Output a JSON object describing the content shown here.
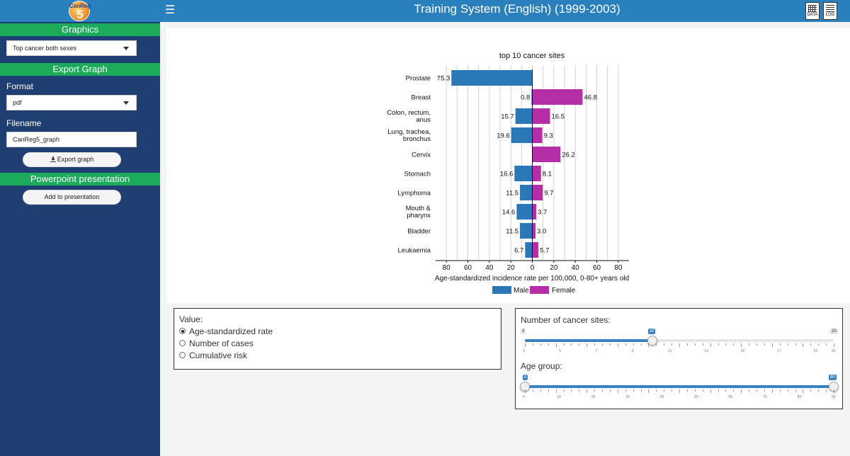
{
  "header": {
    "logo_top": "CanReg",
    "logo_num": "5",
    "title": "Training System (English) (1999-2003)",
    "data_icon_label": "DATA",
    "log_icon_label": "LOG"
  },
  "sidebar": {
    "graphics_title": "Graphics",
    "graphics_select": "Top cancer both sexes",
    "export_title": "Export Graph",
    "format_label": "Format",
    "format_value": "pdf",
    "filename_label": "Filename",
    "filename_value": "CanReg5_graph",
    "export_button": "Export graph",
    "ppt_title": "Powerpoint presentation",
    "add_button": "Add to presentation"
  },
  "value_panel": {
    "title": "Value:",
    "options": [
      "Age-standardized rate",
      "Number of cases",
      "Cumulative risk"
    ],
    "selected": 0
  },
  "sites_slider": {
    "title": "Number of cancer sites:",
    "min": 3,
    "max": 20,
    "value": 10,
    "min_label": "3",
    "max_label": "20",
    "value_label": "10",
    "ticks": [
      "3",
      "5",
      "7",
      "9",
      "11",
      "13",
      "15",
      "17",
      "19",
      "20"
    ],
    "tick_values": [
      3,
      5,
      7,
      9,
      11,
      13,
      15,
      17,
      19,
      20
    ]
  },
  "age_slider": {
    "title": "Age group:",
    "min": 0,
    "max": 90,
    "low": 0,
    "high": 90,
    "low_label": "0",
    "high_label": "90",
    "ticks": [
      "0",
      "10",
      "20",
      "30",
      "40",
      "50",
      "60",
      "70",
      "80",
      "90"
    ],
    "tick_values": [
      0,
      10,
      20,
      30,
      40,
      50,
      60,
      70,
      80,
      90
    ]
  },
  "colors": {
    "male": "#2b78b8",
    "female": "#b52ea6",
    "header": "#2a7fbd",
    "sidebar": "#1f3f72",
    "section": "#1bab5b"
  },
  "chart_data": {
    "type": "bar",
    "title": "top 10 cancer sites",
    "xlabel": "Age-standardized incidence rate per 100,000, 0-80+ years old",
    "xlim": [
      -90,
      90
    ],
    "x_ticks": [
      -80,
      -60,
      -40,
      -20,
      0,
      20,
      40,
      60,
      80
    ],
    "x_tick_labels": [
      "80",
      "60",
      "40",
      "20",
      "0",
      "20",
      "40",
      "60",
      "80"
    ],
    "categories": [
      [
        "Prostate"
      ],
      [
        "Breast"
      ],
      [
        "Colon, rectum,",
        "anus"
      ],
      [
        "Lung, trachea,",
        "bronchus"
      ],
      [
        "Cervix"
      ],
      [
        "Stomach"
      ],
      [
        "Lymphoma"
      ],
      [
        "Mouth &",
        "pharynx"
      ],
      [
        "Bladder"
      ],
      [
        "Leukaemia"
      ]
    ],
    "series": [
      {
        "name": "Male",
        "values": [
          75.3,
          0.8,
          15.7,
          19.6,
          null,
          16.6,
          11.5,
          14.6,
          11.5,
          6.7
        ],
        "labels": [
          "75.3",
          "0.8",
          "15.7",
          "19.6",
          "",
          "16.6",
          "11.5",
          "14.6",
          "11.5",
          "6.7"
        ]
      },
      {
        "name": "Female",
        "values": [
          null,
          46.8,
          16.5,
          9.3,
          26.2,
          8.1,
          9.7,
          3.7,
          3.0,
          5.7
        ],
        "labels": [
          "",
          "46.8",
          "16.5",
          "9.3",
          "26.2",
          "8.1",
          "9.7",
          "3.7",
          "3.0",
          "5.7"
        ]
      }
    ],
    "legend": [
      "Male",
      "Female"
    ],
    "legend_position": "bottom"
  }
}
